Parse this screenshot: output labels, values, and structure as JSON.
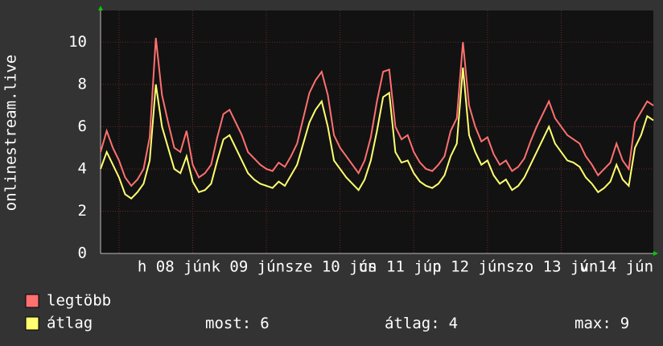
{
  "chart_data": {
    "type": "line",
    "y_label": "onlinestream.live",
    "x": [
      0,
      2,
      4,
      6,
      8,
      10,
      12,
      14,
      16,
      18,
      20,
      22,
      24,
      26,
      28,
      30,
      32,
      34,
      36,
      38,
      40,
      42,
      44,
      46,
      48,
      50,
      52,
      54,
      56,
      58,
      60,
      62,
      64,
      66,
      68,
      70,
      72,
      74,
      76,
      78,
      80,
      82,
      84,
      86,
      88,
      90,
      92,
      94,
      96,
      98,
      100,
      102,
      104,
      106,
      108,
      110,
      112,
      114,
      116,
      118,
      120,
      122,
      124,
      126,
      128,
      130,
      132,
      134,
      136,
      138,
      140,
      142,
      144,
      146,
      148,
      150,
      152,
      154,
      156,
      158,
      160,
      162,
      164,
      166,
      168,
      170,
      172,
      174,
      176,
      178,
      180
    ],
    "series": [
      {
        "name": "legtöbb",
        "color": "#ff7070",
        "values": [
          4.8,
          5.8,
          5.0,
          4.4,
          3.6,
          3.2,
          3.5,
          4.0,
          5.5,
          10.2,
          7.5,
          6.2,
          5.0,
          4.8,
          5.8,
          4.2,
          3.6,
          3.8,
          4.2,
          5.5,
          6.6,
          6.8,
          6.2,
          5.6,
          4.8,
          4.5,
          4.2,
          4.0,
          3.9,
          4.3,
          4.1,
          4.6,
          5.2,
          6.4,
          7.6,
          8.2,
          8.6,
          7.5,
          5.6,
          5.0,
          4.6,
          4.2,
          3.8,
          4.4,
          5.5,
          7.2,
          8.6,
          8.7,
          6.0,
          5.4,
          5.6,
          4.8,
          4.3,
          4.0,
          3.9,
          4.2,
          4.6,
          5.8,
          6.4,
          10.0,
          7.0,
          6.0,
          5.3,
          5.5,
          4.7,
          4.2,
          4.4,
          3.9,
          4.1,
          4.5,
          5.3,
          6.0,
          6.6,
          7.2,
          6.4,
          6.0,
          5.6,
          5.4,
          5.2,
          4.6,
          4.2,
          3.7,
          4.0,
          4.3,
          5.2,
          4.4,
          4.0,
          6.2,
          6.7,
          7.2,
          7.0
        ]
      },
      {
        "name": "átlag",
        "color": "#ffff70",
        "values": [
          4.0,
          4.8,
          4.2,
          3.6,
          2.8,
          2.6,
          2.9,
          3.3,
          4.4,
          8.0,
          6.0,
          5.0,
          4.0,
          3.8,
          4.6,
          3.4,
          2.9,
          3.0,
          3.3,
          4.4,
          5.4,
          5.6,
          5.0,
          4.4,
          3.8,
          3.5,
          3.3,
          3.2,
          3.1,
          3.4,
          3.2,
          3.7,
          4.2,
          5.2,
          6.2,
          6.8,
          7.2,
          6.0,
          4.4,
          4.0,
          3.6,
          3.3,
          3.0,
          3.5,
          4.4,
          5.8,
          7.4,
          7.6,
          4.8,
          4.3,
          4.4,
          3.8,
          3.4,
          3.2,
          3.1,
          3.3,
          3.7,
          4.6,
          5.2,
          8.8,
          5.6,
          4.8,
          4.2,
          4.4,
          3.7,
          3.3,
          3.5,
          3.0,
          3.2,
          3.6,
          4.2,
          4.8,
          5.4,
          6.0,
          5.2,
          4.8,
          4.4,
          4.3,
          4.1,
          3.6,
          3.3,
          2.9,
          3.1,
          3.4,
          4.2,
          3.5,
          3.2,
          5.0,
          5.6,
          6.5,
          6.3
        ]
      }
    ],
    "xlim": [
      0,
      180
    ],
    "xticks": [
      {
        "value": 6,
        "label": "h 08 jún"
      },
      {
        "value": 30,
        "label": "k 09 jún"
      },
      {
        "value": 54,
        "label": "sze 10 jún"
      },
      {
        "value": 78,
        "label": "cs 11 jún"
      },
      {
        "value": 102,
        "label": "p 12 jún"
      },
      {
        "value": 126,
        "label": "szo 13 jún"
      },
      {
        "value": 150,
        "label": "v 14 jún"
      }
    ],
    "ylim": [
      0,
      11.5
    ],
    "yticks": [
      0,
      2,
      4,
      6,
      8,
      10
    ],
    "grid": true,
    "stats": [
      {
        "label": "most:",
        "value": 6
      },
      {
        "label": "átlag:",
        "value": 4
      },
      {
        "label": "max:",
        "value": 9
      }
    ]
  }
}
